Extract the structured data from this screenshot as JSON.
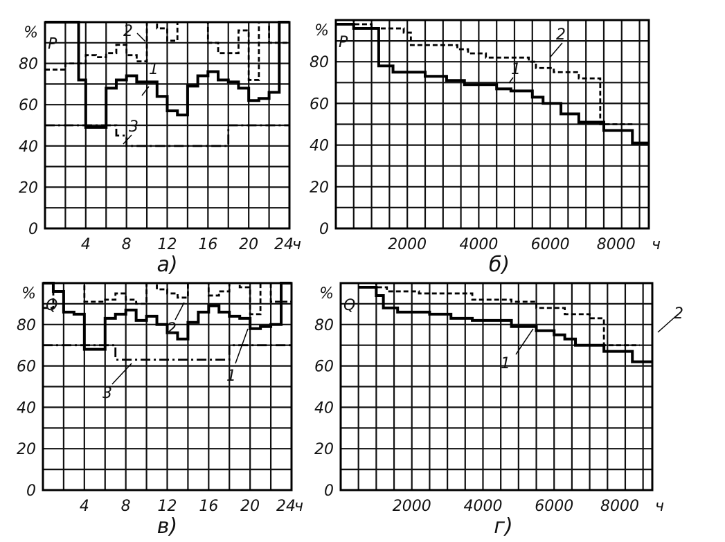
{
  "chart_data": [
    {
      "id": "a",
      "type": "line",
      "caption": "а)",
      "quantity_label": "P",
      "ylabel": "%",
      "xunit": "ч",
      "xlim": [
        0,
        24
      ],
      "ylim": [
        0,
        100
      ],
      "grid": true,
      "x_grid_step": 2,
      "y_grid_step": 10,
      "xticks": [
        4,
        8,
        12,
        16,
        20,
        24
      ],
      "yticks": [
        0,
        20,
        40,
        60,
        80
      ],
      "series": [
        {
          "name": "1",
          "style": "solid",
          "steps": [
            [
              0,
              1,
              100
            ],
            [
              1,
              2,
              100
            ],
            [
              2,
              3.3,
              100
            ],
            [
              3.3,
              4,
              72
            ],
            [
              4,
              6,
              49
            ],
            [
              6,
              7,
              68
            ],
            [
              7,
              8,
              72
            ],
            [
              8,
              9,
              74
            ],
            [
              9,
              10,
              71
            ],
            [
              10,
              11,
              71
            ],
            [
              11,
              12,
              64
            ],
            [
              12,
              13,
              57
            ],
            [
              13,
              14,
              55
            ],
            [
              14,
              15,
              69
            ],
            [
              15,
              16,
              74
            ],
            [
              16,
              17,
              76
            ],
            [
              17,
              18,
              72
            ],
            [
              18,
              19,
              71
            ],
            [
              19,
              20,
              68
            ],
            [
              20,
              21,
              62
            ],
            [
              21,
              22,
              63
            ],
            [
              22,
              23,
              66
            ],
            [
              23,
              24,
              100
            ]
          ]
        },
        {
          "name": "2",
          "style": "dashed",
          "steps": [
            [
              0,
              2,
              77
            ],
            [
              2,
              4,
              80
            ],
            [
              4,
              5,
              84
            ],
            [
              5,
              6,
              83
            ],
            [
              6,
              7,
              85
            ],
            [
              7,
              8,
              89
            ],
            [
              8,
              9,
              84
            ],
            [
              9,
              10,
              81
            ],
            [
              10,
              11,
              100
            ],
            [
              11,
              12,
              97
            ],
            [
              12,
              13,
              91
            ],
            [
              13,
              16,
              100
            ],
            [
              16,
              17,
              90
            ],
            [
              17,
              19,
              85
            ],
            [
              19,
              20,
              96
            ],
            [
              20,
              21,
              72
            ],
            [
              21,
              22,
              100
            ],
            [
              22,
              24,
              90
            ]
          ]
        },
        {
          "name": "3",
          "style": "dashdot",
          "steps": [
            [
              0,
              7,
              50
            ],
            [
              7,
              8,
              45
            ],
            [
              8,
              18,
              40
            ],
            [
              18,
              24,
              50
            ]
          ]
        }
      ]
    },
    {
      "id": "b",
      "type": "line",
      "caption": "б)",
      "quantity_label": "P",
      "ylabel": "%",
      "xunit": "ч",
      "xlim": [
        0,
        8760
      ],
      "ylim": [
        0,
        100
      ],
      "grid": true,
      "x_grid_step": 500,
      "y_grid_step": 10,
      "xticks": [
        2000,
        4000,
        6000,
        8000
      ],
      "yticks": [
        0,
        20,
        40,
        60,
        80
      ],
      "series": [
        {
          "name": "1",
          "style": "solid",
          "steps": [
            [
              0,
              500,
              98
            ],
            [
              500,
              1200,
              96
            ],
            [
              1200,
              1600,
              78
            ],
            [
              1600,
              2500,
              75
            ],
            [
              2500,
              3100,
              73
            ],
            [
              3100,
              3600,
              71
            ],
            [
              3600,
              4500,
              69
            ],
            [
              4500,
              4900,
              67
            ],
            [
              4900,
              5500,
              66
            ],
            [
              5500,
              5800,
              63
            ],
            [
              5800,
              6300,
              60
            ],
            [
              6300,
              6800,
              55
            ],
            [
              6800,
              7500,
              51
            ],
            [
              7500,
              8300,
              47
            ],
            [
              8300,
              8760,
              41
            ]
          ]
        },
        {
          "name": "2",
          "style": "dashed",
          "steps": [
            [
              0,
              500,
              100
            ],
            [
              500,
              1000,
              98
            ],
            [
              1000,
              1900,
              96
            ],
            [
              1900,
              2100,
              94
            ],
            [
              2100,
              3400,
              88
            ],
            [
              3400,
              3700,
              86
            ],
            [
              3700,
              4200,
              84
            ],
            [
              4200,
              5400,
              82
            ],
            [
              5400,
              5600,
              80
            ],
            [
              5600,
              6100,
              77
            ],
            [
              6100,
              6800,
              75
            ],
            [
              6800,
              7400,
              72
            ],
            [
              7400,
              8300,
              50
            ]
          ]
        }
      ]
    },
    {
      "id": "c",
      "type": "line",
      "caption": "в)",
      "quantity_label": "Q",
      "ylabel": "%",
      "xunit": "ч",
      "xlim": [
        0,
        24
      ],
      "ylim": [
        0,
        100
      ],
      "grid": true,
      "x_grid_step": 2,
      "y_grid_step": 10,
      "xticks": [
        4,
        8,
        12,
        16,
        20,
        24
      ],
      "yticks": [
        0,
        20,
        40,
        60,
        80
      ],
      "series": [
        {
          "name": "1",
          "style": "solid",
          "steps": [
            [
              0,
              1,
              100
            ],
            [
              1,
              2,
              96
            ],
            [
              2,
              3,
              86
            ],
            [
              3,
              4,
              85
            ],
            [
              4,
              6,
              68
            ],
            [
              6,
              7,
              83
            ],
            [
              7,
              8,
              85
            ],
            [
              8,
              9,
              87
            ],
            [
              9,
              10,
              82
            ],
            [
              10,
              11,
              84
            ],
            [
              11,
              12,
              80
            ],
            [
              12,
              13,
              76
            ],
            [
              13,
              14,
              73
            ],
            [
              14,
              15,
              81
            ],
            [
              15,
              16,
              86
            ],
            [
              16,
              17,
              89
            ],
            [
              17,
              18,
              86
            ],
            [
              18,
              19,
              84
            ],
            [
              19,
              20,
              83
            ],
            [
              20,
              21,
              78
            ],
            [
              21,
              22,
              79
            ],
            [
              22,
              23,
              80
            ],
            [
              23,
              24,
              100
            ]
          ]
        },
        {
          "name": "2",
          "style": "dashed",
          "steps": [
            [
              0,
              1,
              88
            ],
            [
              1,
              4,
              100
            ],
            [
              4,
              6,
              91
            ],
            [
              6,
              7,
              92
            ],
            [
              7,
              8,
              95
            ],
            [
              8,
              9,
              92
            ],
            [
              9,
              10,
              90
            ],
            [
              10,
              11,
              100
            ],
            [
              11,
              12,
              97
            ],
            [
              12,
              13,
              95
            ],
            [
              13,
              14,
              93
            ],
            [
              14,
              16,
              100
            ],
            [
              16,
              17,
              94
            ],
            [
              17,
              18,
              96
            ],
            [
              18,
              19,
              100
            ],
            [
              19,
              20,
              98
            ],
            [
              20,
              21,
              85
            ],
            [
              21,
              22,
              100
            ],
            [
              22,
              24,
              91
            ]
          ]
        },
        {
          "name": "3",
          "style": "dashdot",
          "steps": [
            [
              0,
              7,
              70
            ],
            [
              7,
              18,
              63
            ],
            [
              18,
              24,
              70
            ]
          ]
        }
      ]
    },
    {
      "id": "d",
      "type": "line",
      "caption": "г)",
      "quantity_label": "Q",
      "ylabel": "%",
      "xunit": "ч",
      "xlim": [
        0,
        8760
      ],
      "ylim": [
        0,
        100
      ],
      "grid": true,
      "x_grid_step": 500,
      "y_grid_step": 10,
      "xticks": [
        2000,
        4000,
        6000,
        8000
      ],
      "yticks": [
        0,
        20,
        40,
        60,
        80
      ],
      "series": [
        {
          "name": "1",
          "style": "solid",
          "steps": [
            [
              500,
              1000,
              98
            ],
            [
              1000,
              1200,
              94
            ],
            [
              1200,
              1600,
              88
            ],
            [
              1600,
              2500,
              86
            ],
            [
              2500,
              3100,
              85
            ],
            [
              3100,
              3700,
              83
            ],
            [
              3700,
              4800,
              82
            ],
            [
              4800,
              5500,
              79
            ],
            [
              5500,
              6000,
              77
            ],
            [
              6000,
              6300,
              75
            ],
            [
              6300,
              6600,
              73
            ],
            [
              6600,
              7400,
              70
            ],
            [
              7400,
              8200,
              67
            ],
            [
              8200,
              8760,
              62
            ]
          ]
        },
        {
          "name": "2",
          "style": "dashed",
          "steps": [
            [
              500,
              1000,
              100
            ],
            [
              1000,
              1300,
              98
            ],
            [
              1300,
              2200,
              96
            ],
            [
              2200,
              3700,
              95
            ],
            [
              3700,
              4800,
              92
            ],
            [
              4800,
              5500,
              91
            ],
            [
              5500,
              6300,
              88
            ],
            [
              6300,
              7000,
              85
            ],
            [
              7000,
              7400,
              83
            ],
            [
              7400,
              8400,
              70
            ]
          ]
        }
      ]
    }
  ]
}
